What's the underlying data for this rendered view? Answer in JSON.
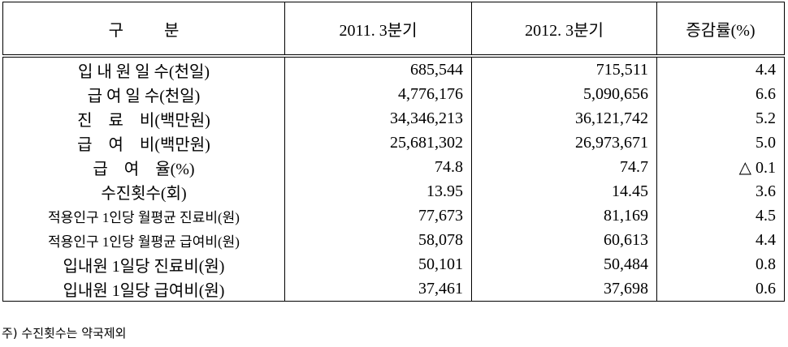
{
  "table": {
    "header": [
      "구          분",
      "2011. 3분기",
      "2012. 3분기",
      "증감률(%)"
    ],
    "rows": [
      [
        "입 내 원 일 수(천일)",
        "685,544",
        "715,511",
        "4.4"
      ],
      [
        "급 여 일 수(천일)",
        "4,776,176",
        "5,090,656",
        "6.6"
      ],
      [
        "진    료    비(백만원)",
        "34,346,213",
        "36,121,742",
        "5.2"
      ],
      [
        "급    여    비(백만원)",
        "25,681,302",
        "26,973,671",
        "5.0"
      ],
      [
        "급    여    율(%)",
        "74.8",
        "74.7",
        "△ 0.1"
      ],
      [
        "수진횟수(회)",
        "13.95",
        "14.45",
        "3.6"
      ],
      [
        "적용인구 1인당 월평균 진료비(원)",
        "77,673",
        "81,169",
        "4.5"
      ],
      [
        "적용인구 1인당 월평균 급여비(원)",
        "58,078",
        "60,613",
        "4.4"
      ],
      [
        "입내원 1일당 진료비(원)",
        "50,101",
        "50,484",
        "0.8"
      ],
      [
        "입내원 1일당 급여비(원)",
        "37,461",
        "37,698",
        "0.6"
      ]
    ]
  },
  "footnote": "주) 수진횟수는 약국제외"
}
